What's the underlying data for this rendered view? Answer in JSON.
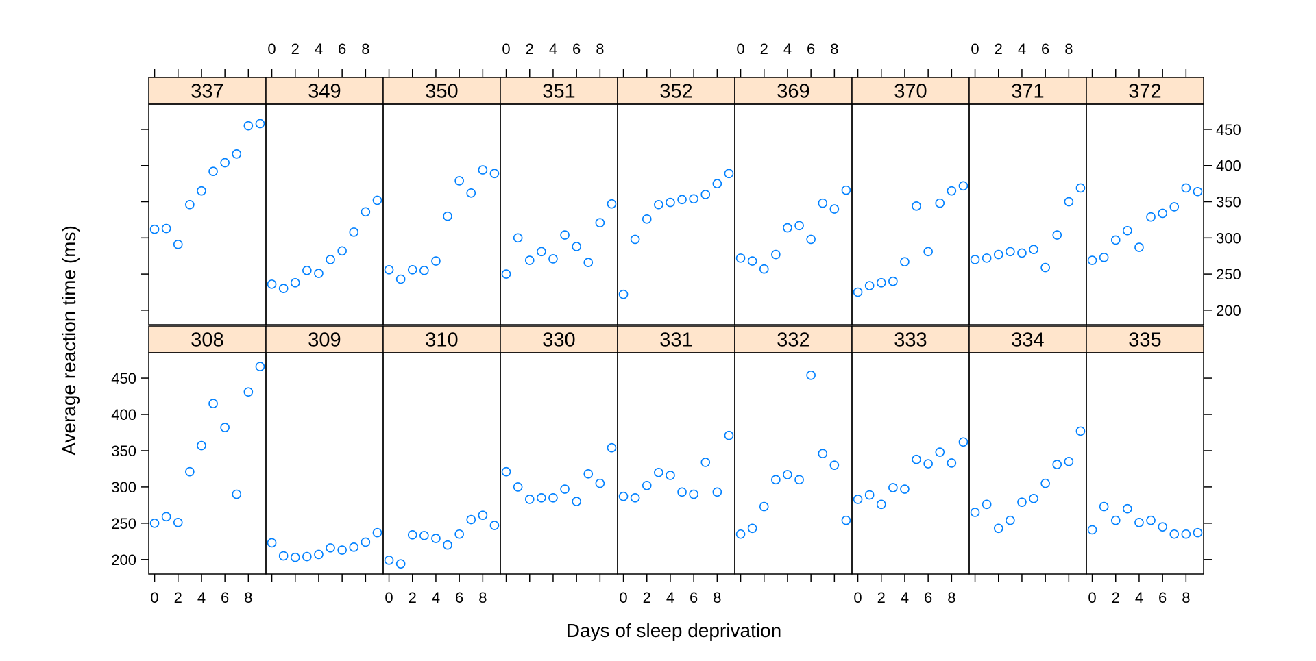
{
  "chart_data": {
    "type": "scatter",
    "xlabel": "Days of sleep deprivation",
    "ylabel": "Average reaction time (ms)",
    "xlim": [
      -0.5,
      9.5
    ],
    "ylim": [
      180,
      485
    ],
    "x_ticks": [
      0,
      2,
      4,
      6,
      8
    ],
    "y_ticks": [
      200,
      250,
      300,
      350,
      400,
      450
    ],
    "point_color": "#0080ff",
    "strip_color": "#ffe5cc",
    "x": [
      0,
      1,
      2,
      3,
      4,
      5,
      6,
      7,
      8,
      9
    ],
    "panels": [
      {
        "name": "337",
        "values": [
          312,
          313,
          291,
          346,
          365,
          392,
          404,
          416,
          455,
          458
        ]
      },
      {
        "name": "349",
        "values": [
          236,
          230,
          238,
          255,
          251,
          270,
          282,
          308,
          336,
          352
        ]
      },
      {
        "name": "350",
        "values": [
          256,
          243,
          256,
          255,
          268,
          330,
          379,
          362,
          394,
          389
        ]
      },
      {
        "name": "351",
        "values": [
          250,
          300,
          269,
          281,
          271,
          304,
          288,
          266,
          321,
          347
        ]
      },
      {
        "name": "352",
        "values": [
          222,
          298,
          326,
          346,
          349,
          353,
          354,
          360,
          375,
          389
        ]
      },
      {
        "name": "369",
        "values": [
          272,
          268,
          257,
          277,
          314,
          317,
          298,
          348,
          340,
          366
        ]
      },
      {
        "name": "370",
        "values": [
          225,
          234,
          238,
          240,
          267,
          344,
          281,
          348,
          365,
          372
        ]
      },
      {
        "name": "371",
        "values": [
          270,
          272,
          277,
          281,
          279,
          284,
          259,
          304,
          350,
          369
        ]
      },
      {
        "name": "372",
        "values": [
          269,
          273,
          297,
          310,
          287,
          329,
          334,
          343,
          369,
          364
        ]
      },
      {
        "name": "308",
        "values": [
          250,
          259,
          251,
          321,
          357,
          415,
          382,
          290,
          431,
          466
        ]
      },
      {
        "name": "309",
        "values": [
          223,
          205,
          203,
          204,
          207,
          216,
          213,
          217,
          224,
          237
        ]
      },
      {
        "name": "310",
        "values": [
          199,
          194,
          234,
          233,
          229,
          220,
          235,
          255,
          261,
          247
        ]
      },
      {
        "name": "330",
        "values": [
          321,
          300,
          283,
          285,
          285,
          297,
          280,
          318,
          305,
          354
        ]
      },
      {
        "name": "331",
        "values": [
          287,
          285,
          302,
          320,
          316,
          293,
          290,
          334,
          293,
          371
        ]
      },
      {
        "name": "332",
        "values": [
          235,
          243,
          273,
          310,
          317,
          310,
          454,
          346,
          330,
          254
        ]
      },
      {
        "name": "333",
        "values": [
          283,
          289,
          276,
          299,
          297,
          338,
          332,
          348,
          333,
          362
        ]
      },
      {
        "name": "334",
        "values": [
          265,
          276,
          243,
          254,
          279,
          284,
          305,
          331,
          335,
          377
        ]
      },
      {
        "name": "335",
        "values": [
          241,
          273,
          254,
          270,
          251,
          254,
          245,
          235,
          235,
          237
        ]
      }
    ]
  }
}
